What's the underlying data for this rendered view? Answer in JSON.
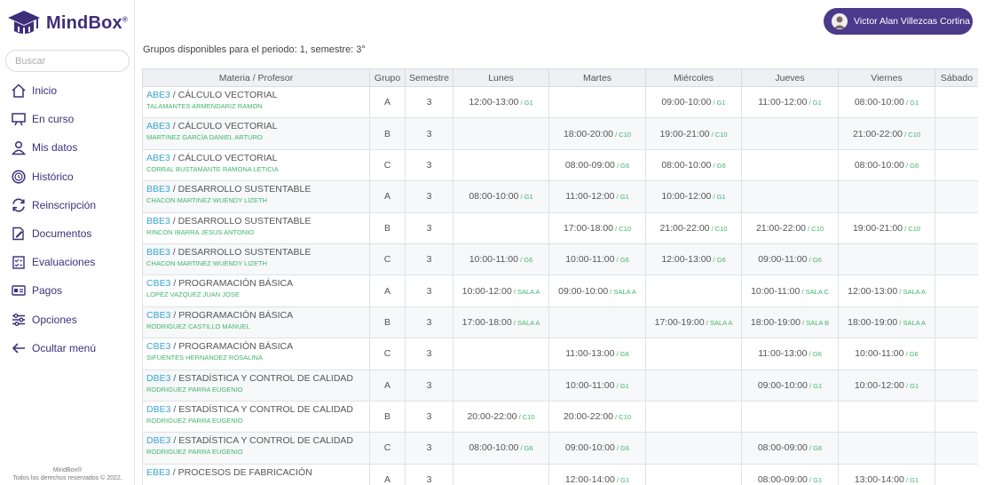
{
  "app": {
    "name": "MindBox",
    "trademark": "®"
  },
  "search": {
    "placeholder": "Buscar"
  },
  "nav": [
    {
      "label": "Inicio",
      "icon": "home-icon"
    },
    {
      "label": "En curso",
      "icon": "presentation-icon"
    },
    {
      "label": "Mis datos",
      "icon": "user-icon"
    },
    {
      "label": "Histórico",
      "icon": "history-icon"
    },
    {
      "label": "Reinscripción",
      "icon": "refresh-icon"
    },
    {
      "label": "Documentos",
      "icon": "document-edit-icon"
    },
    {
      "label": "Evaluaciones",
      "icon": "checklist-icon"
    },
    {
      "label": "Pagos",
      "icon": "card-icon"
    },
    {
      "label": "Opciones",
      "icon": "sliders-icon"
    },
    {
      "label": "Ocultar menú",
      "icon": "arrow-left-icon"
    }
  ],
  "footer": {
    "line1": "MindBox®",
    "line2": "Todos los derechos reservados © 2022."
  },
  "user": {
    "name": "Victor Alan Villezcas Cortina"
  },
  "period_text": "Grupos disponibles para el periodo: 1, semestre: 3°",
  "colors": {
    "brand": "#3d2f7a",
    "user_button": "#4b3a8c",
    "code": "#3aa6d6",
    "room": "#40b56b"
  },
  "table": {
    "headers": [
      "Materia / Profesor",
      "Grupo",
      "Semestre",
      "Lunes",
      "Martes",
      "Miércoles",
      "Jueves",
      "Viernes",
      "Sábado"
    ],
    "rows": [
      {
        "code": "ABE3",
        "subject": " / CÁLCULO VECTORIAL",
        "prof": "TALAMANTES ARMENDARIZ RAMON",
        "group": "A",
        "sem": "3",
        "days": [
          [
            "12:00-13:00",
            "G1"
          ],
          [
            "",
            ""
          ],
          [
            "09:00-10:00",
            "G1"
          ],
          [
            "11:00-12:00",
            "G1"
          ],
          [
            "08:00-10:00",
            "G1"
          ],
          [
            "",
            ""
          ]
        ]
      },
      {
        "code": "ABE3",
        "subject": " / CÁLCULO VECTORIAL",
        "prof": "MARTINEZ GARCÍA DANIEL ARTURO",
        "group": "B",
        "sem": "3",
        "days": [
          [
            "",
            ""
          ],
          [
            "18:00-20:00",
            "C10"
          ],
          [
            "19:00-21:00",
            "C10"
          ],
          [
            "",
            ""
          ],
          [
            "21:00-22:00",
            "C10"
          ],
          [
            "",
            ""
          ]
        ]
      },
      {
        "code": "ABE3",
        "subject": " / CÁLCULO VECTORIAL",
        "prof": "CORRAL BUSTAMANTE RAMONA LETICIA",
        "group": "C",
        "sem": "3",
        "days": [
          [
            "",
            ""
          ],
          [
            "08:00-09:00",
            "G6"
          ],
          [
            "08:00-10:00",
            "G6"
          ],
          [
            "",
            ""
          ],
          [
            "08:00-10:00",
            "G6"
          ],
          [
            "",
            ""
          ]
        ]
      },
      {
        "code": "BBE3",
        "subject": " / DESARROLLO SUSTENTABLE",
        "prof": "CHACON MARTINEZ WUENDY LIZETH",
        "group": "A",
        "sem": "3",
        "days": [
          [
            "08:00-10:00",
            "G1"
          ],
          [
            "11:00-12:00",
            "G1"
          ],
          [
            "10:00-12:00",
            "G1"
          ],
          [
            "",
            ""
          ],
          [
            "",
            ""
          ],
          [
            "",
            ""
          ]
        ]
      },
      {
        "code": "BBE3",
        "subject": " / DESARROLLO SUSTENTABLE",
        "prof": "RINCON IBARRA JESUS ANTONIO",
        "group": "B",
        "sem": "3",
        "days": [
          [
            "",
            ""
          ],
          [
            "17:00-18:00",
            "C10"
          ],
          [
            "21:00-22:00",
            "C10"
          ],
          [
            "21:00-22:00",
            "C10"
          ],
          [
            "19:00-21:00",
            "C10"
          ],
          [
            "",
            ""
          ]
        ]
      },
      {
        "code": "BBE3",
        "subject": " / DESARROLLO SUSTENTABLE",
        "prof": "CHACON MARTINEZ WUENDY LIZETH",
        "group": "C",
        "sem": "3",
        "days": [
          [
            "10:00-11:00",
            "G6"
          ],
          [
            "10:00-11:00",
            "G6"
          ],
          [
            "12:00-13:00",
            "G6"
          ],
          [
            "09:00-11:00",
            "G6"
          ],
          [
            "",
            ""
          ],
          [
            "",
            ""
          ]
        ]
      },
      {
        "code": "CBE3",
        "subject": " / PROGRAMACIÓN BÁSICA",
        "prof": "LOPEZ VAZQUEZ JUAN JOSE",
        "group": "A",
        "sem": "3",
        "days": [
          [
            "10:00-12:00",
            "SALA A"
          ],
          [
            "09:00-10:00",
            "SALA A"
          ],
          [
            "",
            ""
          ],
          [
            "10:00-11:00",
            "SALA C"
          ],
          [
            "12:00-13:00",
            "SALA A"
          ],
          [
            "",
            ""
          ]
        ]
      },
      {
        "code": "CBE3",
        "subject": " / PROGRAMACIÓN BÁSICA",
        "prof": "RODRIGUEZ CASTILLO MANUEL",
        "group": "B",
        "sem": "3",
        "days": [
          [
            "17:00-18:00",
            "SALA A"
          ],
          [
            "",
            ""
          ],
          [
            "17:00-19:00",
            "SALA A"
          ],
          [
            "18:00-19:00",
            "SALA B"
          ],
          [
            "18:00-19:00",
            "SALA A"
          ],
          [
            "",
            ""
          ]
        ]
      },
      {
        "code": "CBE3",
        "subject": " / PROGRAMACIÓN BÁSICA",
        "prof": "SIFUENTES HERNANDEZ ROSALINA",
        "group": "C",
        "sem": "3",
        "days": [
          [
            "",
            ""
          ],
          [
            "11:00-13:00",
            "G6"
          ],
          [
            "",
            ""
          ],
          [
            "11:00-13:00",
            "G6"
          ],
          [
            "10:00-11:00",
            "G6"
          ],
          [
            "",
            ""
          ]
        ]
      },
      {
        "code": "DBE3",
        "subject": " / ESTADÍSTICA Y CONTROL DE CALIDAD",
        "prof": "RODRIGUEZ PARRA EUGENIO",
        "group": "A",
        "sem": "3",
        "days": [
          [
            "",
            ""
          ],
          [
            "10:00-11:00",
            "G1"
          ],
          [
            "",
            ""
          ],
          [
            "09:00-10:00",
            "G1"
          ],
          [
            "10:00-12:00",
            "G1"
          ],
          [
            "",
            ""
          ]
        ]
      },
      {
        "code": "DBE3",
        "subject": " / ESTADÍSTICA Y CONTROL DE CALIDAD",
        "prof": "RODRIGUEZ PARRA EUGENIO",
        "group": "B",
        "sem": "3",
        "days": [
          [
            "20:00-22:00",
            "C10"
          ],
          [
            "20:00-22:00",
            "C10"
          ],
          [
            "",
            ""
          ],
          [
            "",
            ""
          ],
          [
            "",
            ""
          ],
          [
            "",
            ""
          ]
        ]
      },
      {
        "code": "DBE3",
        "subject": " / ESTADÍSTICA Y CONTROL DE CALIDAD",
        "prof": "RODRIGUEZ PARRA EUGENIO",
        "group": "C",
        "sem": "3",
        "days": [
          [
            "08:00-10:00",
            "G6"
          ],
          [
            "09:00-10:00",
            "G6"
          ],
          [
            "",
            ""
          ],
          [
            "08:00-09:00",
            "G6"
          ],
          [
            "",
            ""
          ],
          [
            "",
            ""
          ]
        ]
      },
      {
        "code": "EBE3",
        "subject": " / PROCESOS DE FABRICACIÓN",
        "prof": "",
        "group": "A",
        "sem": "3",
        "days": [
          [
            "",
            ""
          ],
          [
            "12:00-14:00",
            "G1"
          ],
          [
            "",
            ""
          ],
          [
            "08:00-09:00",
            "G1"
          ],
          [
            "13:00-14:00",
            "G1"
          ],
          [
            "",
            ""
          ]
        ]
      }
    ]
  }
}
